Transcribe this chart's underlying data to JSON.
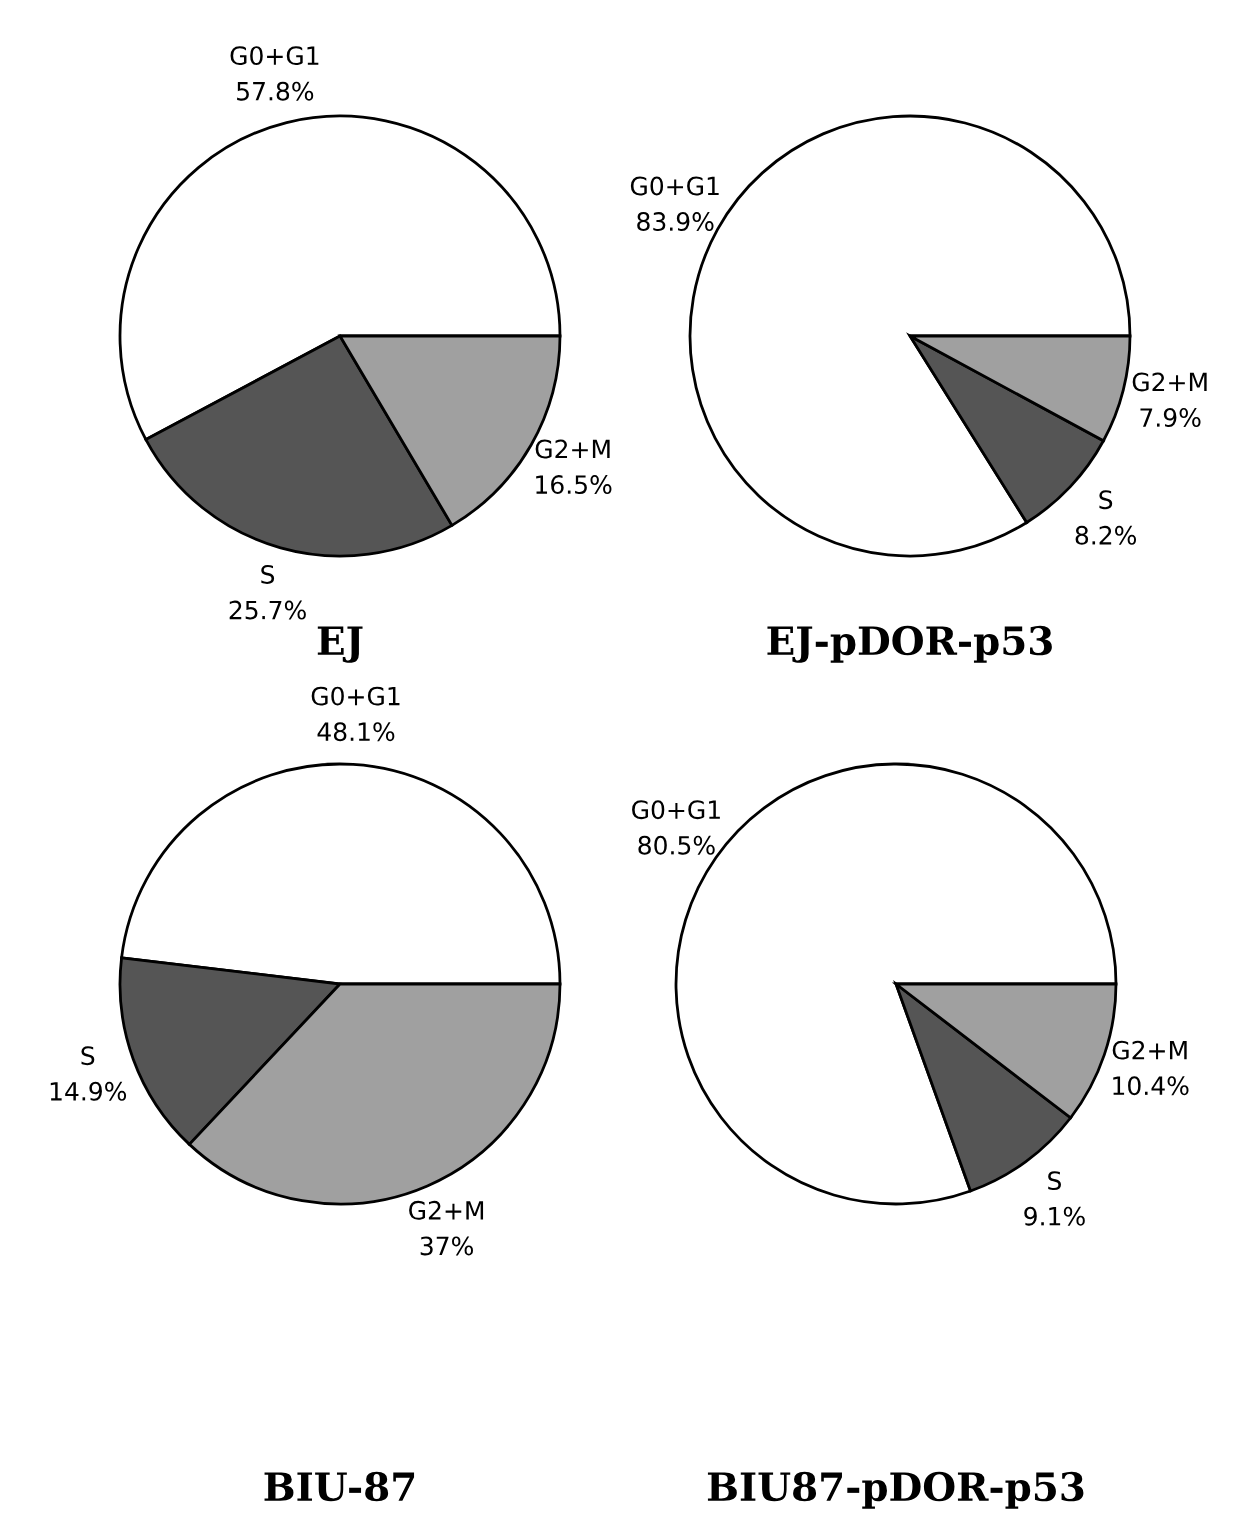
{
  "chart_data": [
    {
      "type": "pie",
      "title": "EJ",
      "categories": [
        "G0+G1",
        "S",
        "G2+M"
      ],
      "values": [
        57.8,
        25.7,
        16.5
      ],
      "value_labels": [
        "57.8%",
        "25.7%",
        "16.5%"
      ],
      "colors": [
        "#ffffff",
        "#555555",
        "#a0a0a0"
      ]
    },
    {
      "type": "pie",
      "title": "EJ-pDOR-p53",
      "categories": [
        "G0+G1",
        "S",
        "G2+M"
      ],
      "values": [
        83.9,
        8.2,
        7.9
      ],
      "value_labels": [
        "83.9%",
        "8.2%",
        "7.9%"
      ],
      "colors": [
        "#ffffff",
        "#555555",
        "#a0a0a0"
      ]
    },
    {
      "type": "pie",
      "title": "BIU-87",
      "categories": [
        "G0+G1",
        "S",
        "G2+M"
      ],
      "values": [
        48.1,
        14.9,
        37
      ],
      "value_labels": [
        "48.1%",
        "14.9%",
        "37%"
      ],
      "colors": [
        "#ffffff",
        "#555555",
        "#a0a0a0"
      ]
    },
    {
      "type": "pie",
      "title": "BIU87-pDOR-p53",
      "categories": [
        "G0+G1",
        "S",
        "G2+M"
      ],
      "values": [
        80.5,
        9.1,
        10.4
      ],
      "value_labels": [
        "80.5%",
        "9.1%",
        "10.4%"
      ],
      "colors": [
        "#ffffff",
        "#555555",
        "#a0a0a0"
      ]
    }
  ]
}
